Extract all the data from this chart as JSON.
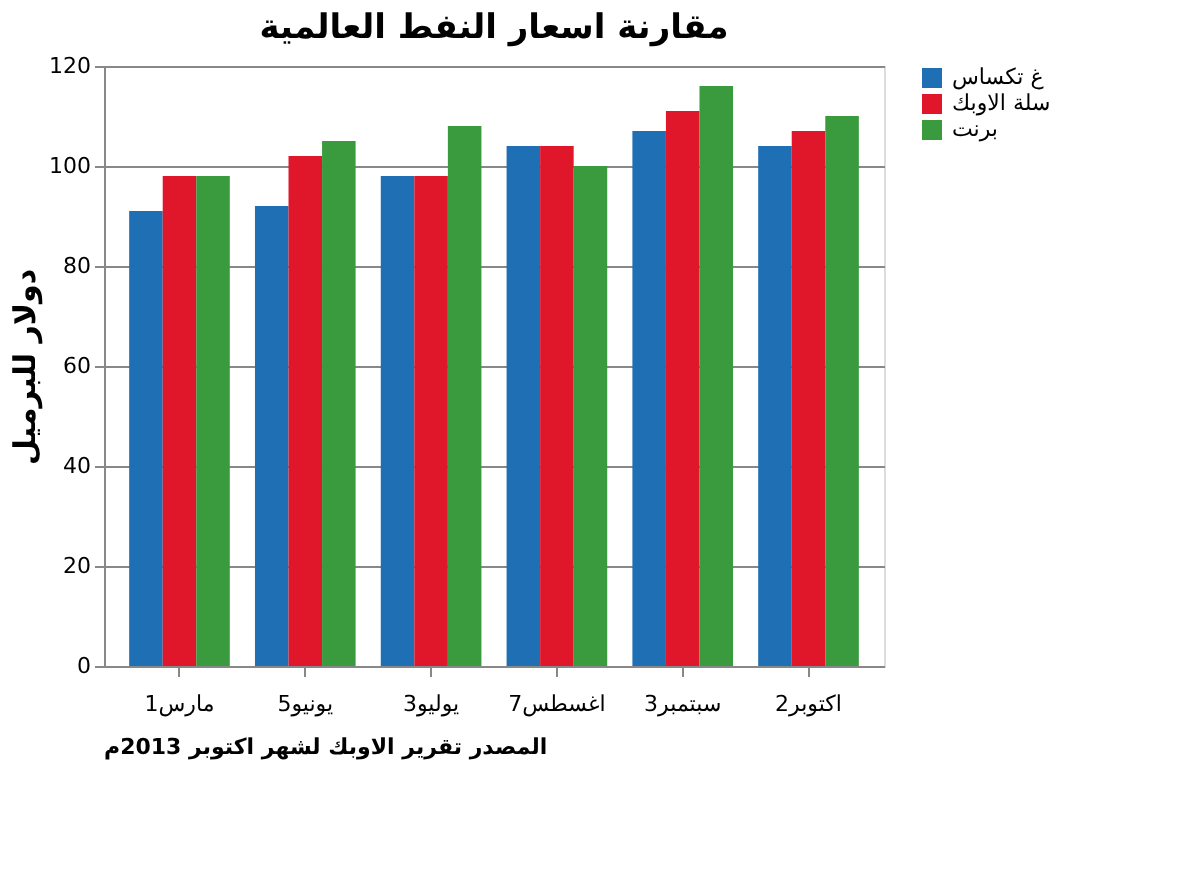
{
  "chart_data": {
    "type": "bar",
    "title": "مقارنة اسعار النفط العالمية",
    "ylabel": "دولار للبرميل",
    "categories": [
      "1مارس",
      "5يونيو",
      "3يوليو",
      "7اغسطس",
      "3سبتمبر",
      "2اكتوبر"
    ],
    "series": [
      {
        "name": "غ تكساس",
        "color": "#1f6fb4",
        "values": [
          91,
          92,
          98,
          104,
          107,
          104
        ]
      },
      {
        "name": "سلة الاوبك",
        "color": "#e0162b",
        "values": [
          98,
          102,
          98,
          104,
          111,
          107
        ]
      },
      {
        "name": "برنت",
        "color": "#3a9a3e",
        "values": [
          98,
          105,
          108,
          100,
          116,
          110
        ]
      }
    ],
    "ylim": [
      0,
      120
    ],
    "yticks": [
      0,
      20,
      40,
      60,
      80,
      100,
      120
    ],
    "grid": "y",
    "legend": "right",
    "annotations": [
      "المصدر تقرير الاوبك لشهر اكتوبر 2013م"
    ]
  }
}
